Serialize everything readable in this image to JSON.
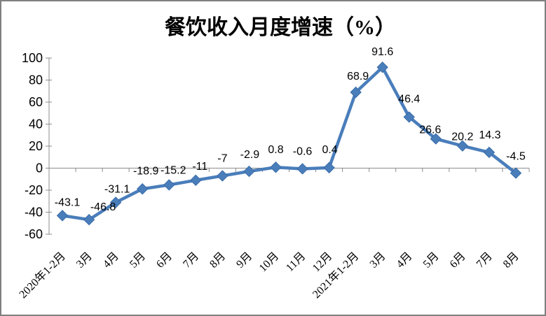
{
  "chart_data": {
    "type": "line",
    "title": "餐饮收入月度增速（%）",
    "categories": [
      "2020年1-2月",
      "3月",
      "4月",
      "5月",
      "6月",
      "7月",
      "8月",
      "9月",
      "10月",
      "11月",
      "12月",
      "2021年1-2月",
      "3月",
      "4月",
      "5月",
      "6月",
      "7月",
      "8月"
    ],
    "values": [
      -43.1,
      -46.8,
      -31.1,
      -18.9,
      -15.2,
      -11,
      -7,
      -2.9,
      0.8,
      -0.6,
      0.4,
      68.9,
      91.6,
      46.4,
      26.6,
      20.2,
      14.3,
      -4.5
    ],
    "data_labels": [
      "-43.1",
      "-46.8",
      "-31.1",
      "-18.9",
      "-15.2",
      "-11",
      "-7",
      "-2.9",
      "0.8",
      "-0.6",
      "0.4",
      "68.9",
      "91.6",
      "46.4",
      "26.6",
      "20.2",
      "14.3",
      "-4.5"
    ],
    "xlabel": "",
    "ylabel": "",
    "ylim": [
      -60,
      100
    ],
    "yticks": [
      100,
      80,
      60,
      40,
      20,
      0,
      -20,
      -40,
      -60
    ],
    "grid": false,
    "legend": "none",
    "marker": "diamond",
    "series_color": "#4A7EBB",
    "marker_edge_color": "#3A6CA8",
    "axis_color": "#8C8C8C",
    "text_color": "#000000",
    "frame_border_color": "#808080",
    "background_color": "#FFFFFF"
  }
}
